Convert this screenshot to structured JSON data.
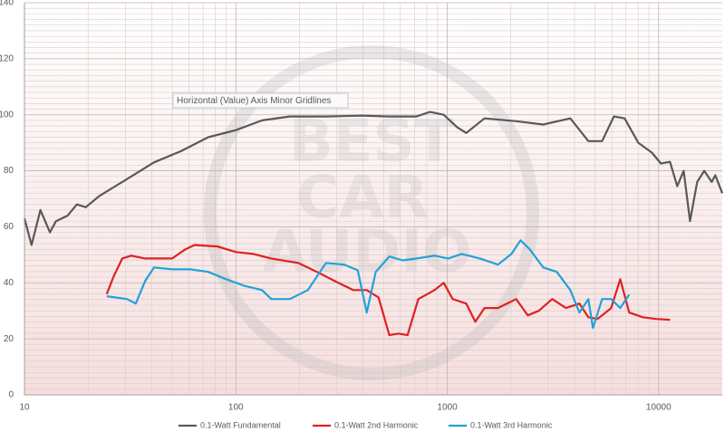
{
  "chart_data": {
    "type": "line",
    "annotation": "Horizontal (Value) Axis Minor Gridlines",
    "watermark": [
      "BEST",
      "CAR",
      "AUDIO"
    ],
    "log_x": true,
    "grid": true,
    "minor_grid": true,
    "legend": "bottom",
    "xlim": [
      10,
      20000
    ],
    "xticks": [
      10,
      100,
      1000,
      10000
    ],
    "ylim": [
      0,
      140
    ],
    "yticks": [
      0,
      20,
      40,
      60,
      80,
      100,
      120,
      140
    ],
    "series": [
      {
        "name": "0.1-Watt Fundamental",
        "color": "#595959",
        "x": [
          10,
          10.8,
          11.9,
          13.2,
          14.1,
          16,
          17.7,
          19.5,
          22.6,
          30.5,
          41,
          55,
          74,
          100,
          133,
          180,
          267,
          395,
          532,
          715,
          829,
          962,
          1115,
          1230,
          1500,
          2120,
          2845,
          3820,
          4650,
          5400,
          6140,
          6900,
          8010,
          9290,
          10250,
          11320,
          12250,
          13130,
          14070,
          15210,
          16440,
          17810,
          18530,
          20000
        ],
        "values": [
          63,
          53.5,
          66,
          58,
          62,
          64,
          68,
          67,
          71,
          77,
          83,
          87,
          92,
          94.5,
          98,
          99.4,
          99.4,
          99.7,
          99.4,
          99.4,
          101,
          100,
          95.5,
          93.5,
          98.7,
          97.7,
          96.5,
          98.7,
          90.6,
          90.6,
          99.4,
          98.7,
          90,
          86.5,
          82.6,
          83.2,
          74.5,
          80,
          62,
          76,
          80,
          76,
          78.4,
          72
        ]
      },
      {
        "name": "0.1-Watt 2nd Harmonic",
        "color": "#e02020",
        "x": [
          24.5,
          26.3,
          29,
          32,
          37.2,
          50,
          57.8,
          63.8,
          81.6,
          100,
          121,
          147,
          197,
          242,
          294,
          359,
          416,
          473,
          532,
          587,
          649,
          730,
          871,
          962,
          1061,
          1230,
          1358,
          1500,
          1738,
          2120,
          2404,
          2710,
          3140,
          3640,
          4220,
          4650,
          5140,
          5960,
          6580,
          7260,
          8420,
          9750,
          11320
        ],
        "values": [
          36,
          42,
          48.7,
          49.7,
          48.7,
          48.7,
          52,
          53.5,
          53,
          51,
          50.3,
          48.7,
          47.1,
          43.9,
          40.6,
          37.4,
          37.4,
          34.8,
          21.3,
          21.9,
          21.3,
          34.2,
          37.4,
          40,
          34.2,
          32.6,
          26.1,
          31,
          31,
          34.2,
          28.4,
          30,
          34.2,
          31,
          32.6,
          27.7,
          27.1,
          31,
          41.3,
          29.4,
          27.7,
          27.1,
          26.8
        ]
      },
      {
        "name": "0.1-Watt 3rd Harmonic",
        "color": "#1fa3d8",
        "x": [
          24.5,
          30.5,
          33.6,
          37.2,
          41,
          50,
          60.9,
          74,
          90,
          109,
          133,
          147,
          180,
          219,
          267,
          325,
          377,
          416,
          459,
          532,
          617,
          715,
          871,
          1010,
          1172,
          1428,
          1738,
          2013,
          2222,
          2455,
          2845,
          3297,
          3820,
          4220,
          4650,
          4890,
          5400,
          5960,
          6580,
          7260
        ],
        "values": [
          35.2,
          34.2,
          32.6,
          40.6,
          45.5,
          44.8,
          44.8,
          43.9,
          41.3,
          39,
          37.4,
          34.2,
          34.2,
          37.4,
          47.1,
          46.5,
          44.5,
          29.4,
          43.9,
          49.4,
          48,
          48.7,
          49.7,
          48.7,
          50.3,
          48.7,
          46.5,
          50.3,
          55.2,
          52,
          45.5,
          43.9,
          37.4,
          29.4,
          34.2,
          23.9,
          34.2,
          34.2,
          31,
          35.8
        ]
      }
    ]
  }
}
